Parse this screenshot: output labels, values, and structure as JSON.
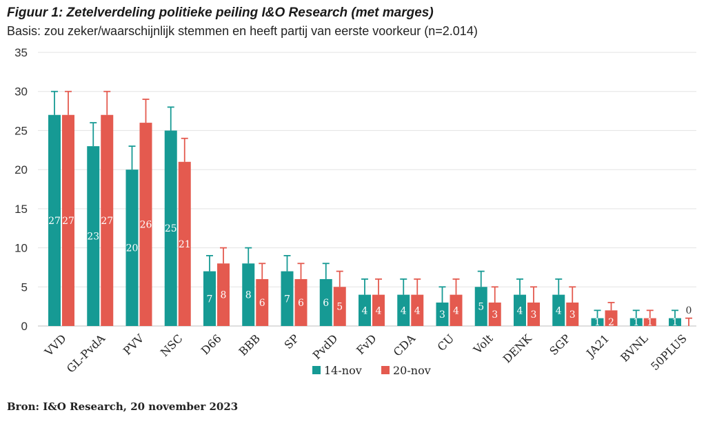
{
  "chart_data": {
    "type": "bar",
    "title": "Figuur 1: Zetelverdeling politieke peiling I&O Research (met marges)",
    "subtitle": "Basis: zou zeker/waarschijnlijk stemmen en heeft partij van eerste voorkeur (n=2.014)",
    "source": "Bron: I&O Research, 20 november 2023",
    "categories": [
      "VVD",
      "GL-PvdA",
      "PVV",
      "NSC",
      "D66",
      "BBB",
      "SP",
      "PvdD",
      "FvD",
      "CDA",
      "CU",
      "Volt",
      "DENK",
      "SGP",
      "JA21",
      "BVNL",
      "50PLUS"
    ],
    "series": [
      {
        "name": "14-nov",
        "values": [
          27,
          23,
          20,
          25,
          7,
          8,
          7,
          6,
          4,
          4,
          3,
          5,
          4,
          4,
          1,
          1,
          1
        ],
        "upper": [
          30,
          26,
          23,
          28,
          9,
          10,
          9,
          8,
          6,
          6,
          5,
          7,
          6,
          6,
          2,
          2,
          2
        ]
      },
      {
        "name": "20-nov",
        "values": [
          27,
          27,
          26,
          21,
          8,
          6,
          6,
          5,
          4,
          4,
          4,
          3,
          3,
          3,
          2,
          1,
          0
        ],
        "upper": [
          30,
          30,
          29,
          24,
          10,
          8,
          8,
          7,
          6,
          6,
          6,
          5,
          5,
          5,
          3,
          2,
          1
        ]
      }
    ],
    "ylim": [
      0,
      35
    ],
    "yticks": [
      0,
      5,
      10,
      15,
      20,
      25,
      30,
      35
    ],
    "grid": true,
    "legend": "bottom-center",
    "colors": {
      "14-nov": "#169a94",
      "20-nov": "#e45a4f"
    }
  }
}
